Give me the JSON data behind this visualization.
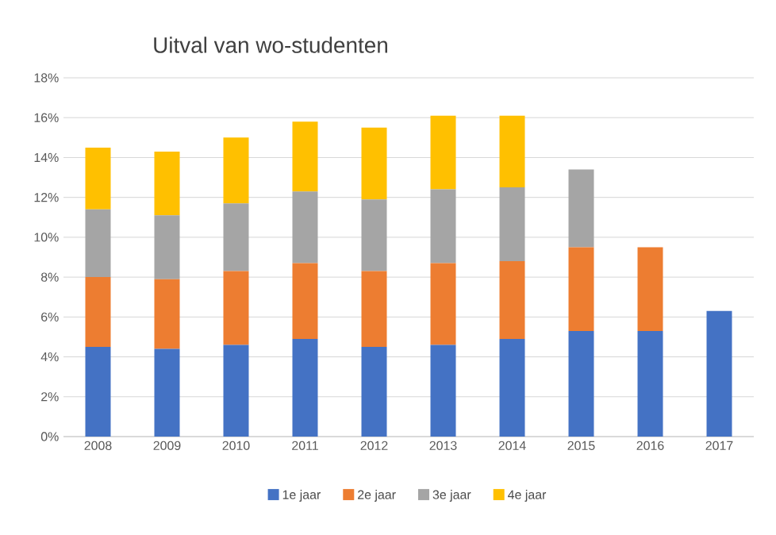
{
  "chart_data": {
    "type": "bar",
    "title": "Uitval van wo-studenten",
    "stacked": true,
    "categories": [
      "2008",
      "2009",
      "2010",
      "2011",
      "2012",
      "2013",
      "2014",
      "2015",
      "2016",
      "2017"
    ],
    "series": [
      {
        "name": "1e jaar",
        "color": "#4472c4",
        "values": [
          4.5,
          4.4,
          4.6,
          4.9,
          4.5,
          4.6,
          4.9,
          5.3,
          5.3,
          6.3
        ]
      },
      {
        "name": "2e jaar",
        "color": "#ed7d31",
        "values": [
          3.5,
          3.5,
          3.7,
          3.8,
          3.8,
          4.1,
          3.9,
          4.2,
          4.2,
          null
        ]
      },
      {
        "name": "3e jaar",
        "color": "#a5a5a5",
        "values": [
          3.4,
          3.2,
          3.4,
          3.6,
          3.6,
          3.7,
          3.7,
          3.9,
          null,
          null
        ]
      },
      {
        "name": "4e jaar",
        "color": "#ffc000",
        "values": [
          3.1,
          3.2,
          3.3,
          3.5,
          3.6,
          3.7,
          3.6,
          null,
          null,
          null
        ]
      }
    ],
    "ylim": [
      0,
      18
    ],
    "yticks": [
      {
        "value": 0,
        "label": "0%"
      },
      {
        "value": 2,
        "label": "2%"
      },
      {
        "value": 4,
        "label": "4%"
      },
      {
        "value": 6,
        "label": "6%"
      },
      {
        "value": 8,
        "label": "8%"
      },
      {
        "value": 10,
        "label": "10%"
      },
      {
        "value": 12,
        "label": "12%"
      },
      {
        "value": 14,
        "label": "14%"
      },
      {
        "value": 16,
        "label": "16%"
      },
      {
        "value": 18,
        "label": "18%"
      }
    ],
    "grid": "y",
    "legend": "bottom"
  }
}
